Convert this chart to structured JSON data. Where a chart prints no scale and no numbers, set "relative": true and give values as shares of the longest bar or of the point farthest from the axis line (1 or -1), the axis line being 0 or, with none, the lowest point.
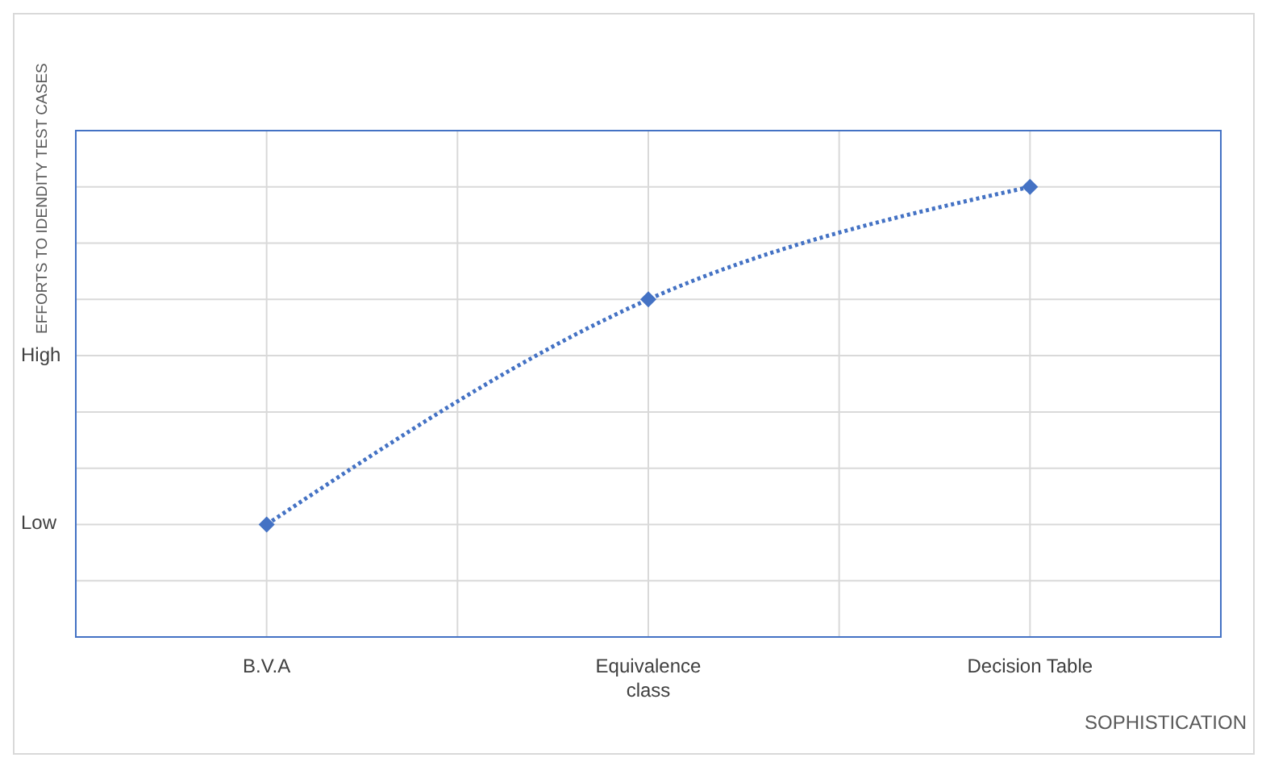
{
  "chart_data": {
    "type": "line",
    "xlabel": "SOPHISTICATION",
    "ylabel": "EFFORTS TO IDENDITY TEST CASES",
    "categories": [
      "B.V.A",
      "Equivalence class",
      "Decision Table"
    ],
    "relative": true,
    "series": [
      {
        "color": "#4472c4",
        "values": [
          0.25,
          0.75,
          1
        ]
      }
    ],
    "annotations": [
      "Low",
      "High"
    ],
    "grid": true,
    "marker": "diamond",
    "line_style": "dotted"
  }
}
